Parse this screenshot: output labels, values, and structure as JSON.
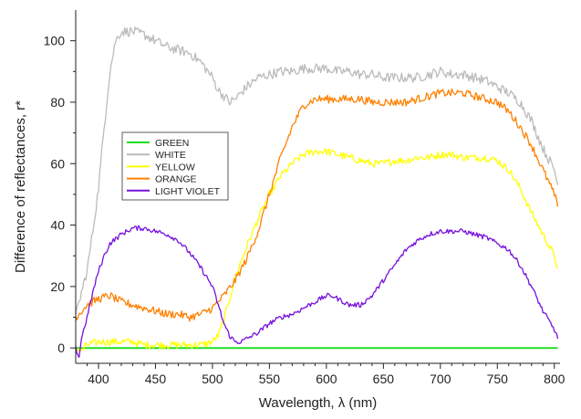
{
  "chart_data": {
    "type": "line",
    "title": "",
    "xlabel": "Wavelength, λ (nm)",
    "ylabel": "Difference of reflectances, r*",
    "xlim": [
      380,
      805
    ],
    "ylim": [
      -5,
      110
    ],
    "xticks": [
      "400",
      "450",
      "500",
      "550",
      "600",
      "650",
      "700",
      "750",
      "800"
    ],
    "yticks": [
      "0",
      "20",
      "40",
      "60",
      "80",
      "100"
    ],
    "grid": false,
    "legend_position": "upper-left",
    "series": [
      {
        "name": "GREEN",
        "color": "#22dd22",
        "x": [
          380,
          803
        ],
        "y": [
          0,
          0
        ]
      },
      {
        "name": "WHITE",
        "color": "#bbbbbb",
        "x": [
          380,
          385,
          390,
          395,
          400,
          405,
          410,
          415,
          420,
          430,
          440,
          450,
          460,
          470,
          480,
          490,
          500,
          505,
          510,
          515,
          520,
          525,
          530,
          540,
          550,
          560,
          570,
          580,
          590,
          600,
          610,
          620,
          630,
          640,
          650,
          660,
          670,
          680,
          690,
          700,
          710,
          720,
          730,
          740,
          750,
          760,
          770,
          780,
          790,
          800,
          803
        ],
        "y": [
          10,
          18,
          25,
          38,
          52,
          72,
          90,
          100,
          103,
          103,
          102,
          100,
          98,
          97,
          96,
          93,
          88,
          84,
          82,
          80,
          81,
          83,
          85,
          88,
          89,
          90,
          90,
          91,
          91,
          91,
          90,
          90,
          89,
          89,
          88,
          88,
          88,
          88,
          89,
          90,
          89,
          89,
          88,
          87,
          85,
          83,
          80,
          74,
          65,
          58,
          53
        ]
      },
      {
        "name": "YELLOW",
        "color": "#ffff00",
        "x": [
          380,
          385,
          390,
          400,
          410,
          420,
          430,
          440,
          450,
          460,
          470,
          480,
          490,
          500,
          505,
          510,
          515,
          520,
          525,
          530,
          540,
          550,
          560,
          570,
          580,
          590,
          600,
          610,
          620,
          630,
          640,
          650,
          660,
          670,
          680,
          690,
          700,
          710,
          720,
          730,
          740,
          750,
          760,
          770,
          780,
          790,
          800,
          803
        ],
        "y": [
          0,
          -1,
          1,
          2,
          2,
          2,
          2,
          1,
          1,
          1,
          1,
          1,
          1,
          2,
          4,
          9,
          16,
          23,
          28,
          33,
          42,
          50,
          56,
          60,
          63,
          64,
          64,
          63,
          62,
          61,
          60,
          60,
          61,
          61,
          62,
          62,
          63,
          63,
          62,
          62,
          62,
          61,
          58,
          52,
          44,
          37,
          30,
          26
        ]
      },
      {
        "name": "ORANGE",
        "color": "#ff8000",
        "x": [
          380,
          385,
          390,
          400,
          410,
          420,
          430,
          440,
          450,
          460,
          470,
          480,
          490,
          500,
          510,
          520,
          530,
          540,
          550,
          560,
          570,
          580,
          590,
          600,
          610,
          620,
          630,
          640,
          650,
          660,
          670,
          680,
          690,
          700,
          710,
          720,
          730,
          740,
          750,
          760,
          770,
          780,
          790,
          800,
          803
        ],
        "y": [
          10,
          12,
          14,
          16,
          17,
          15,
          14,
          13,
          12,
          11,
          11,
          10,
          11,
          13,
          17,
          22,
          29,
          38,
          50,
          62,
          72,
          79,
          81,
          81,
          81,
          81,
          81,
          80,
          80,
          80,
          80,
          81,
          82,
          83,
          83,
          83,
          82,
          81,
          80,
          77,
          72,
          66,
          58,
          50,
          46
        ]
      },
      {
        "name": "LIGHT VIOLET",
        "color": "#7711dd",
        "x": [
          380,
          383,
          385,
          390,
          395,
          400,
          405,
          410,
          420,
          430,
          440,
          450,
          460,
          470,
          480,
          490,
          500,
          505,
          510,
          515,
          520,
          525,
          530,
          540,
          550,
          560,
          570,
          580,
          590,
          600,
          605,
          610,
          620,
          630,
          640,
          650,
          660,
          670,
          680,
          690,
          700,
          710,
          720,
          730,
          740,
          750,
          760,
          770,
          780,
          790,
          800,
          803
        ],
        "y": [
          0,
          -3,
          3,
          10,
          18,
          25,
          30,
          34,
          37,
          39,
          39,
          38,
          37,
          35,
          31,
          26,
          20,
          14,
          8,
          4,
          2,
          2,
          3,
          5,
          8,
          10,
          11,
          13,
          15,
          17,
          17,
          16,
          14,
          14,
          17,
          22,
          27,
          32,
          35,
          37,
          38,
          38,
          38,
          37,
          36,
          34,
          32,
          27,
          20,
          12,
          6,
          3
        ]
      }
    ]
  }
}
